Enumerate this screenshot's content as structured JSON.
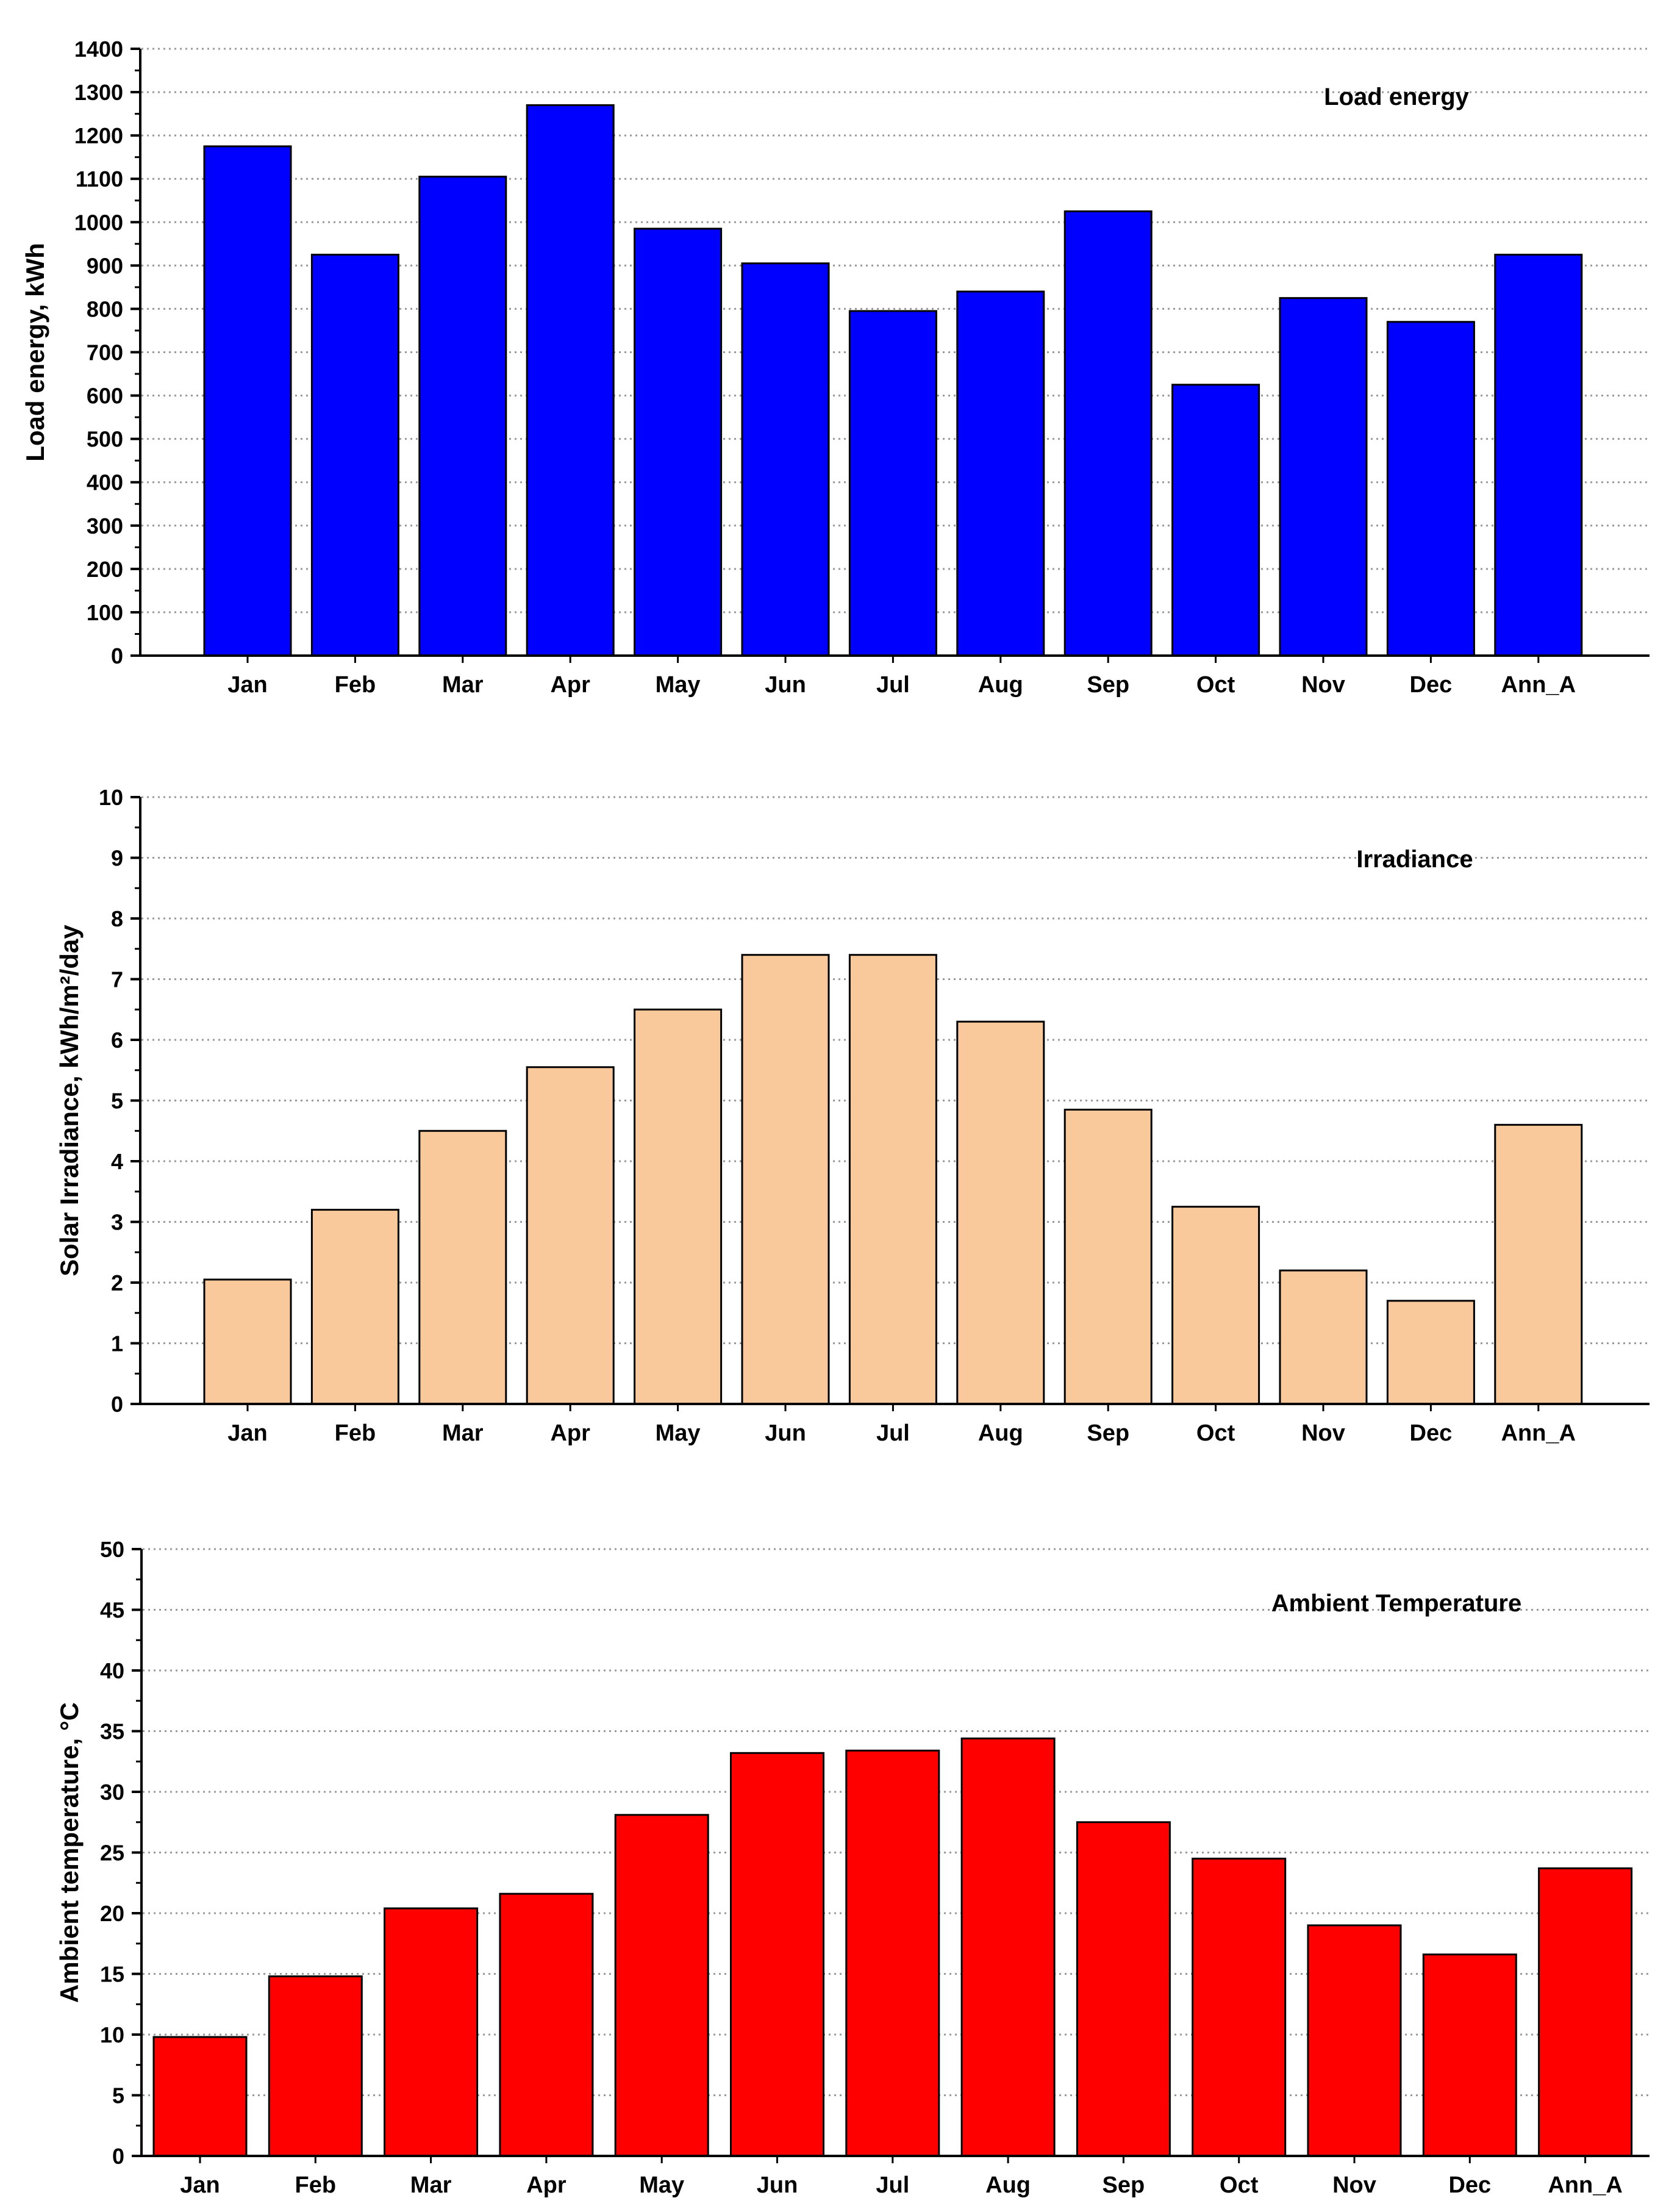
{
  "chart_data": [
    {
      "type": "bar",
      "title": "Load energy",
      "xlabel": "",
      "ylabel": "Load energy, kWh",
      "ylim": [
        0,
        1400
      ],
      "ytick_step": 100,
      "grid": true,
      "bar_color": "#0000ff",
      "categories": [
        "Jan",
        "Feb",
        "Mar",
        "Apr",
        "May",
        "Jun",
        "Jul",
        "Aug",
        "Sep",
        "Oct",
        "Nov",
        "Dec",
        "Ann_A"
      ],
      "values": [
        1175,
        925,
        1105,
        1270,
        985,
        905,
        795,
        840,
        1025,
        625,
        825,
        770,
        925
      ]
    },
    {
      "type": "bar",
      "title": "Irradiance",
      "xlabel": "",
      "ylabel": "Solar Irradiance, kWh/m²/day",
      "ylim": [
        0,
        10
      ],
      "ytick_step": 1,
      "grid": true,
      "bar_color": "#f9c89b",
      "categories": [
        "Jan",
        "Feb",
        "Mar",
        "Apr",
        "May",
        "Jun",
        "Jul",
        "Aug",
        "Sep",
        "Oct",
        "Nov",
        "Dec",
        "Ann_A"
      ],
      "values": [
        2.05,
        3.2,
        4.5,
        5.55,
        6.5,
        7.4,
        7.4,
        6.3,
        4.85,
        3.25,
        2.2,
        1.7,
        4.6
      ]
    },
    {
      "type": "bar",
      "title": "Ambient Temperature",
      "xlabel": "",
      "ylabel": "Ambient temperature, °C",
      "ylim": [
        0,
        50
      ],
      "ytick_step": 5,
      "grid": true,
      "bar_color": "#ff0000",
      "categories": [
        "Jan",
        "Feb",
        "Mar",
        "Apr",
        "May",
        "Jun",
        "Jul",
        "Aug",
        "Sep",
        "Oct",
        "Nov",
        "Dec",
        "Ann_A"
      ],
      "values": [
        9.8,
        14.8,
        20.4,
        21.6,
        28.1,
        33.2,
        33.4,
        34.4,
        27.5,
        24.5,
        19.0,
        16.6,
        23.7
      ]
    }
  ]
}
